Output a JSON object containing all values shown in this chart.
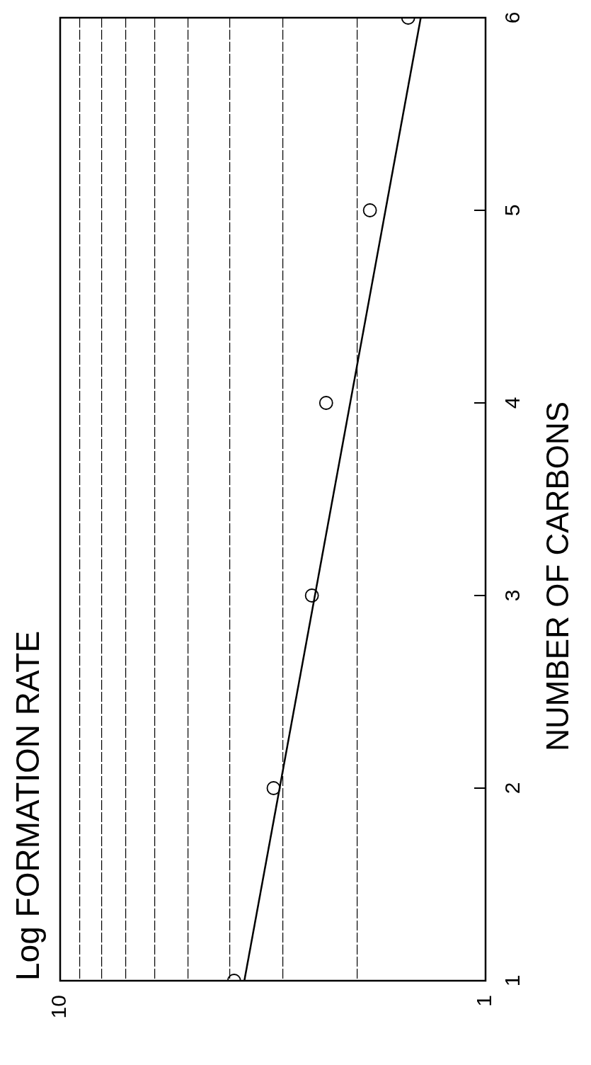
{
  "chart_data": {
    "type": "scatter",
    "title": "Log FORMATION RATE",
    "ylabel": "NUMBER OF CARBONS",
    "log": "x",
    "xlim": [
      10,
      1
    ],
    "xticks": [
      10,
      {
        "value": 9,
        "label": null
      },
      {
        "value": 8,
        "label": null
      },
      {
        "value": 7,
        "label": null
      },
      {
        "value": 6,
        "label": null
      },
      {
        "value": 5,
        "label": null
      },
      {
        "value": 4,
        "label": null
      },
      {
        "value": 3,
        "label": null
      },
      {
        "value": 2,
        "label": null
      },
      1
    ],
    "ylim": [
      1,
      6
    ],
    "yticks": [
      1,
      2,
      3,
      4,
      5,
      6
    ],
    "grid": "x",
    "series": [
      {
        "color": "#000000",
        "marker": "circle",
        "x": [
          3.9,
          3.15,
          2.56,
          2.37,
          1.87,
          1.52
        ],
        "values": [
          1,
          2,
          3,
          4,
          5,
          6
        ]
      },
      {
        "type": "line",
        "color": "#000000",
        "marker": "none",
        "line_style": "solid",
        "x": [
          3.69,
          1.42
        ],
        "values": [
          1,
          6
        ]
      }
    ]
  }
}
